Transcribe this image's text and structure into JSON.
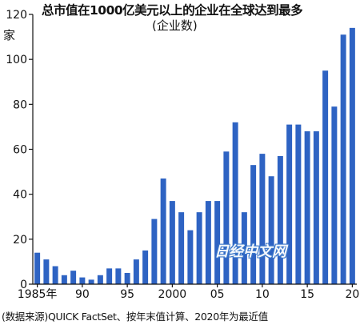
{
  "chart_data": {
    "type": "bar",
    "title": "总市值在1000亿美元以上的企业在全球达到最多",
    "subtitle": "(企业数)",
    "ylabel": "家",
    "xlabel": "",
    "x": [
      1985,
      1986,
      1987,
      1988,
      1989,
      1990,
      1991,
      1992,
      1993,
      1994,
      1995,
      1996,
      1997,
      1998,
      1999,
      2000,
      2001,
      2002,
      2003,
      2004,
      2005,
      2006,
      2007,
      2008,
      2009,
      2010,
      2011,
      2012,
      2013,
      2014,
      2015,
      2016,
      2017,
      2018,
      2019,
      2020
    ],
    "values": [
      14,
      11,
      8,
      4,
      6,
      3,
      2,
      4,
      7,
      7,
      5,
      11,
      15,
      29,
      47,
      37,
      32,
      24,
      32,
      37,
      37,
      59,
      72,
      32,
      53,
      58,
      48,
      57,
      71,
      71,
      68,
      68,
      95,
      79,
      111,
      114
    ],
    "ylim": [
      0,
      120
    ],
    "yticks": [
      0,
      20,
      40,
      60,
      80,
      100,
      120
    ],
    "xtick_labels": [
      {
        "x": 1985,
        "label": "1985年"
      },
      {
        "x": 1990,
        "label": "90"
      },
      {
        "x": 1995,
        "label": "95"
      },
      {
        "x": 2000,
        "label": "2000"
      },
      {
        "x": 2005,
        "label": "05"
      },
      {
        "x": 2010,
        "label": "10"
      },
      {
        "x": 2015,
        "label": "15"
      },
      {
        "x": 2020,
        "label": "20"
      }
    ],
    "grid": false,
    "bar_color": "#2e63c3",
    "source": "(数据来源)QUICK FactSet、按年末值计算、2020年为最近值"
  },
  "watermark": "日经中文网"
}
